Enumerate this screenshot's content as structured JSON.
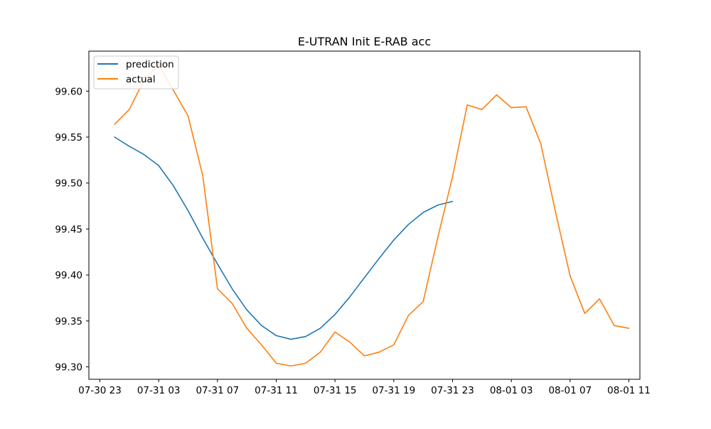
{
  "chart_data": {
    "type": "line",
    "title": "E-UTRAN Init E-RAB acc",
    "xlabel": "",
    "ylabel": "",
    "x_ticks": [
      "07-30 23",
      "07-31 03",
      "07-31 07",
      "07-31 11",
      "07-31 15",
      "07-31 19",
      "07-31 23",
      "08-01 03",
      "08-01 07",
      "08-01 11"
    ],
    "y_ticks": [
      "99.30",
      "99.35",
      "99.40",
      "99.45",
      "99.50",
      "99.55",
      "99.60"
    ],
    "xlim": [
      "2023-07-30 22:15",
      "2023-08-01 11:45"
    ],
    "ylim": [
      99.2865,
      99.6435
    ],
    "grid": false,
    "legend_position": "top-left",
    "series": [
      {
        "name": "prediction",
        "color": "#1f77b4",
        "x": [
          "07-31 00",
          "07-31 01",
          "07-31 02",
          "07-31 03",
          "07-31 04",
          "07-31 05",
          "07-31 06",
          "07-31 07",
          "07-31 08",
          "07-31 09",
          "07-31 10",
          "07-31 11",
          "07-31 12",
          "07-31 13",
          "07-31 14",
          "07-31 15",
          "07-31 16",
          "07-31 17",
          "07-31 18",
          "07-31 19",
          "07-31 20",
          "07-31 21",
          "07-31 22",
          "07-31 23"
        ],
        "values": [
          99.55,
          99.54,
          99.531,
          99.519,
          99.497,
          99.47,
          99.44,
          99.412,
          99.385,
          99.362,
          99.345,
          99.334,
          99.33,
          99.333,
          99.342,
          99.357,
          99.376,
          99.397,
          99.418,
          99.438,
          99.455,
          99.468,
          99.476,
          99.48
        ]
      },
      {
        "name": "actual",
        "color": "#ff7f0e",
        "x": [
          "07-31 00",
          "07-31 01",
          "07-31 02",
          "07-31 03",
          "07-31 04",
          "07-31 05",
          "07-31 06",
          "07-31 07",
          "07-31 08",
          "07-31 09",
          "07-31 10",
          "07-31 11",
          "07-31 12",
          "07-31 13",
          "07-31 14",
          "07-31 15",
          "07-31 16",
          "07-31 17",
          "07-31 18",
          "07-31 19",
          "07-31 20",
          "07-31 21",
          "07-31 22",
          "07-31 23",
          "08-01 00",
          "08-01 01",
          "08-01 02",
          "08-01 03",
          "08-01 04",
          "08-01 05",
          "08-01 06",
          "08-01 07",
          "08-01 08",
          "08-01 09",
          "08-01 10",
          "08-01 11"
        ],
        "values": [
          99.564,
          99.58,
          99.612,
          99.629,
          99.601,
          99.573,
          99.508,
          99.385,
          99.369,
          99.342,
          99.324,
          99.304,
          99.301,
          99.304,
          99.316,
          99.338,
          99.327,
          99.312,
          99.316,
          99.324,
          99.356,
          99.371,
          99.441,
          99.507,
          99.585,
          99.58,
          99.596,
          99.582,
          99.583,
          99.543,
          99.469,
          99.399,
          99.358,
          99.374,
          99.345,
          99.342
        ]
      }
    ]
  }
}
